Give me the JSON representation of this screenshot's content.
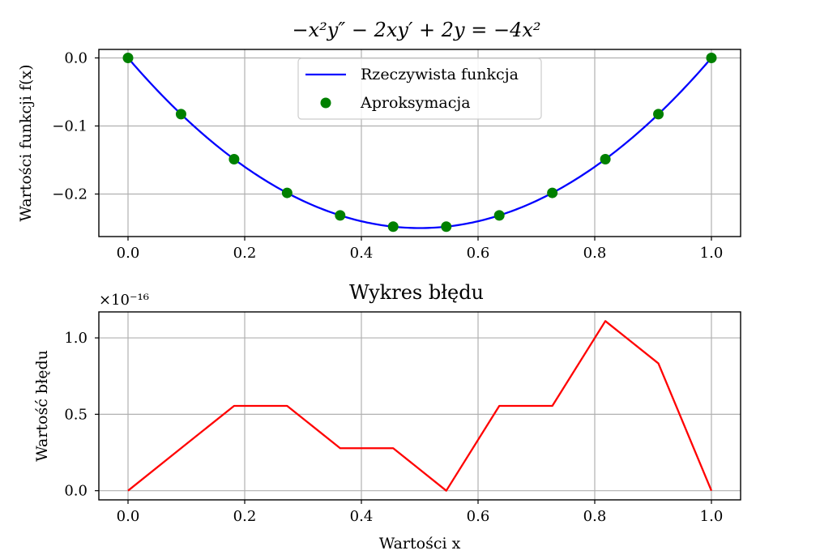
{
  "chart_data": [
    {
      "type": "line",
      "title": "−x²y″ − 2xy′ + 2y = −4x²",
      "xlabel": "",
      "ylabel": "Wartości funkcji f(x)",
      "xlim": [
        -0.05,
        1.05
      ],
      "ylim": [
        -0.2625,
        0.0125
      ],
      "x_ticks": [
        0.0,
        0.2,
        0.4,
        0.6,
        0.8,
        1.0
      ],
      "x_tick_labels": [
        "0.0",
        "0.2",
        "0.4",
        "0.6",
        "0.8",
        "1.0"
      ],
      "y_ticks": [
        0.0,
        -0.1,
        -0.2
      ],
      "y_tick_labels": [
        "0.0",
        "−0.1",
        "−0.2"
      ],
      "grid": true,
      "legend_position": "upper center",
      "series": [
        {
          "name": "Rzeczywista funkcja",
          "kind": "line",
          "color": "#0000ff",
          "function": "y = x^2 - x"
        },
        {
          "name": "Aproksymacja",
          "kind": "scatter",
          "color": "#008000",
          "x": [
            0.0,
            0.0909,
            0.1818,
            0.2727,
            0.3636,
            0.4545,
            0.5455,
            0.6364,
            0.7273,
            0.8182,
            0.9091,
            1.0
          ],
          "y": [
            0.0,
            -0.0826,
            -0.1488,
            -0.1983,
            -0.2314,
            -0.2479,
            -0.2479,
            -0.2314,
            -0.1983,
            -0.1488,
            -0.0826,
            0.0
          ]
        }
      ]
    },
    {
      "type": "line",
      "title": "Wykres błędu",
      "xlabel": "Wartości x",
      "ylabel": "Wartość błędu",
      "xlim": [
        -0.05,
        1.05
      ],
      "ylim": [
        -0.06,
        1.17
      ],
      "y_scale_note": "×10⁻¹⁶",
      "x_ticks": [
        0.0,
        0.2,
        0.4,
        0.6,
        0.8,
        1.0
      ],
      "x_tick_labels": [
        "0.0",
        "0.2",
        "0.4",
        "0.6",
        "0.8",
        "1.0"
      ],
      "y_ticks": [
        0.0,
        0.5,
        1.0
      ],
      "y_tick_labels": [
        "0.0",
        "0.5",
        "1.0"
      ],
      "grid": true,
      "series": [
        {
          "kind": "line",
          "color": "#ff0000",
          "x": [
            0.0,
            0.0909,
            0.1818,
            0.2727,
            0.3636,
            0.4545,
            0.5455,
            0.6364,
            0.7273,
            0.8182,
            0.9091,
            1.0
          ],
          "y": [
            0.0,
            0.278,
            0.555,
            0.555,
            0.278,
            0.278,
            0.0,
            0.555,
            0.555,
            1.11,
            0.833,
            0.0
          ]
        }
      ]
    }
  ]
}
